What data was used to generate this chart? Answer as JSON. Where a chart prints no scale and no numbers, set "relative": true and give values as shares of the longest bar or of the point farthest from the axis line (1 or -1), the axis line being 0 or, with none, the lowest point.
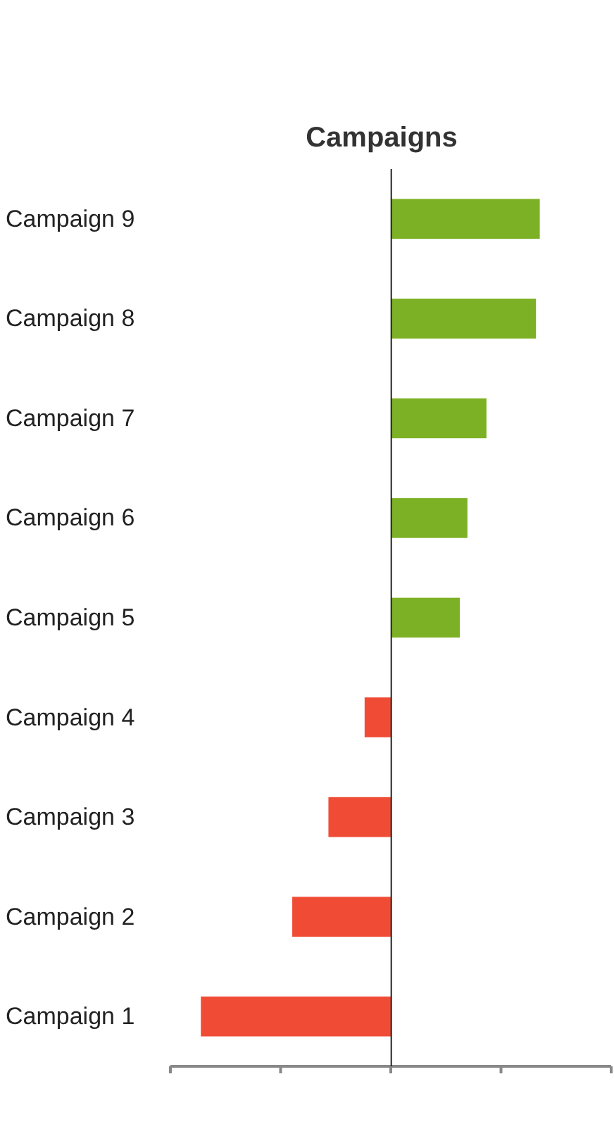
{
  "chart_data": {
    "type": "bar",
    "title": "Campaigns",
    "orientation": "horizontal",
    "relative": true,
    "categories": [
      "Campaign 9",
      "Campaign 8",
      "Campaign 7",
      "Campaign 6",
      "Campaign 5",
      "Campaign 4",
      "Campaign 3",
      "Campaign 2",
      "Campaign 1"
    ],
    "values": [
      0.78,
      0.76,
      0.5,
      0.4,
      0.36,
      -0.14,
      -0.33,
      -0.52,
      -1
    ],
    "colors": [
      "#7db125",
      "#7db125",
      "#7db125",
      "#7db125",
      "#7db125",
      "#f04c35",
      "#f04c35",
      "#f04c35",
      "#f04c35"
    ]
  }
}
